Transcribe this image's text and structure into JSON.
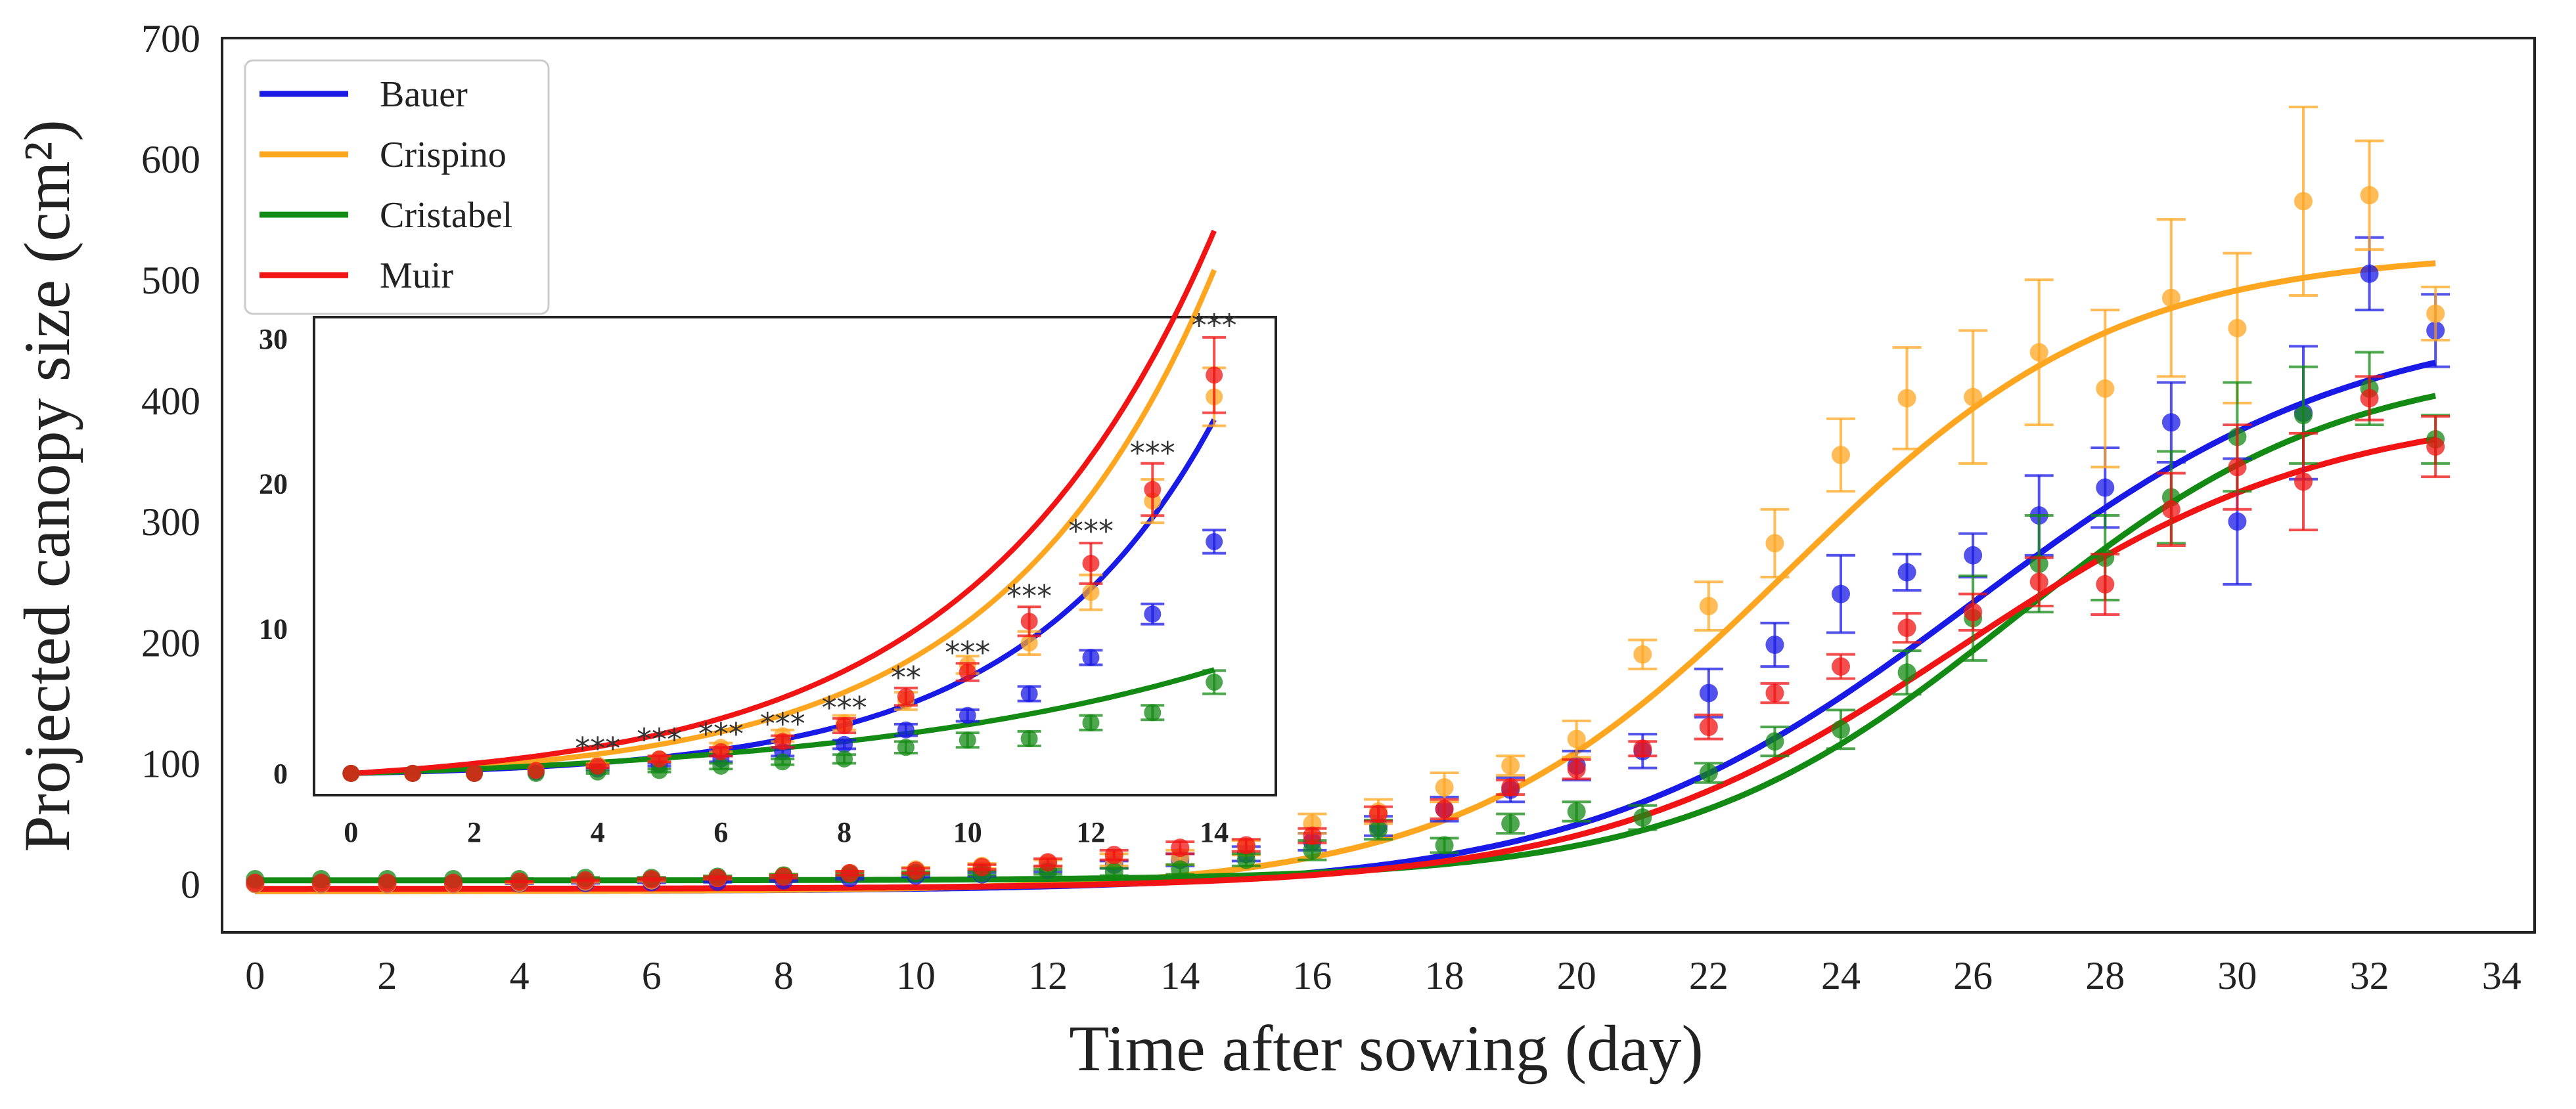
{
  "chart_data": {
    "type": "line",
    "title": "",
    "xlabel": "Time after sowing (day)",
    "ylabel": "Projected canopy size (cm²)",
    "xlim": [
      -0.5,
      34.5
    ],
    "ylim": [
      -40,
      700
    ],
    "xticks": [
      "0",
      "2",
      "4",
      "6",
      "8",
      "10",
      "12",
      "14",
      "16",
      "18",
      "20",
      "22",
      "24",
      "26",
      "28",
      "30",
      "32",
      "34"
    ],
    "yticks": [
      "0",
      "100",
      "200",
      "300",
      "400",
      "500",
      "600",
      "700"
    ],
    "legend": {
      "placement": "top-left",
      "entries": [
        "Bauer",
        "Crispino",
        "Cristabel",
        "Muir"
      ]
    },
    "colors": {
      "Bauer": "#1a1ae6",
      "Crispino": "#ffa620",
      "Cristabel": "#138a13",
      "Muir": "#f01414"
    },
    "fits": [
      {
        "name": "Bauer",
        "A": 478,
        "k": 0.34,
        "t0": 26.0,
        "base": -6
      },
      {
        "name": "Crispino",
        "A": 530,
        "k": 0.4,
        "t0": 23.2,
        "base": -6
      },
      {
        "name": "Cristabel",
        "A": 432,
        "k": 0.4,
        "t0": 26.6,
        "base": 3
      },
      {
        "name": "Muir",
        "A": 400,
        "k": 0.36,
        "t0": 25.8,
        "base": -4
      }
    ],
    "series": [
      {
        "name": "Bauer",
        "x": [
          0,
          1,
          2,
          3,
          4,
          5,
          6,
          7,
          8,
          9,
          10,
          11,
          12,
          13,
          14,
          15,
          16,
          17,
          18,
          19,
          20,
          21,
          22,
          23,
          24,
          25,
          26,
          27,
          28,
          29,
          30,
          31,
          32,
          33
        ],
        "y": [
          0,
          0,
          0,
          0,
          0.5,
          1,
          1.5,
          2,
          3,
          5,
          7,
          8,
          12,
          16,
          20,
          25,
          35,
          48,
          62,
          78,
          98,
          110,
          158,
          198,
          240,
          258,
          272,
          305,
          328,
          382,
          300,
          390,
          505,
          458
        ],
        "err": [
          0,
          0,
          0,
          0,
          0.3,
          0.4,
          0.5,
          0.6,
          0.8,
          1,
          1.2,
          1.5,
          2,
          3,
          5,
          6,
          7,
          8,
          10,
          10,
          12,
          14,
          20,
          18,
          32,
          15,
          18,
          33,
          33,
          33,
          52,
          55,
          30,
          30
        ]
      },
      {
        "name": "Crispino",
        "x": [
          0,
          1,
          2,
          3,
          4,
          5,
          6,
          7,
          8,
          9,
          10,
          11,
          12,
          13,
          14,
          15,
          16,
          17,
          18,
          19,
          20,
          21,
          22,
          23,
          24,
          25,
          26,
          27,
          28,
          29,
          30,
          31,
          32,
          33
        ],
        "y": [
          0,
          0,
          0,
          0,
          1,
          2,
          3,
          5,
          7,
          9,
          12,
          15,
          17,
          20,
          22,
          30,
          50,
          60,
          80,
          98,
          120,
          190,
          230,
          282,
          355,
          402,
          403,
          440,
          410,
          485,
          460,
          565,
          570,
          472
        ],
        "err": [
          0,
          0,
          0,
          0,
          0.3,
          0.5,
          0.8,
          1,
          1.2,
          1.5,
          1.8,
          2,
          3,
          5,
          6,
          6,
          8,
          10,
          12,
          8,
          15,
          12,
          20,
          28,
          30,
          42,
          55,
          60,
          65,
          65,
          62,
          78,
          45,
          22
        ]
      },
      {
        "name": "Cristabel",
        "x": [
          0,
          1,
          2,
          3,
          4,
          5,
          6,
          7,
          8,
          9,
          10,
          11,
          12,
          13,
          14,
          15,
          16,
          17,
          18,
          19,
          20,
          21,
          22,
          23,
          24,
          25,
          26,
          27,
          28,
          29,
          30,
          31,
          32,
          33
        ],
        "y": [
          4,
          4,
          4,
          4,
          4,
          5,
          5,
          6,
          7,
          8,
          9,
          9,
          10,
          10,
          12,
          20,
          28,
          45,
          32,
          50,
          60,
          55,
          92,
          118,
          128,
          175,
          220,
          265,
          270,
          320,
          370,
          388,
          410,
          368
        ],
        "err": [
          0,
          0,
          0,
          0,
          0.5,
          0.5,
          0.6,
          0.8,
          1,
          1,
          1.2,
          1.5,
          2,
          3,
          4,
          5,
          8,
          8,
          6,
          8,
          8,
          10,
          8,
          12,
          16,
          18,
          35,
          40,
          35,
          38,
          45,
          40,
          30,
          20
        ]
      },
      {
        "name": "Muir",
        "x": [
          0,
          1,
          2,
          3,
          4,
          5,
          6,
          7,
          8,
          9,
          10,
          11,
          12,
          13,
          14,
          15,
          16,
          17,
          18,
          19,
          20,
          21,
          22,
          23,
          24,
          25,
          26,
          27,
          28,
          29,
          30,
          31,
          32,
          33
        ],
        "y": [
          1,
          1,
          1,
          1,
          2,
          3,
          4,
          5,
          6,
          9,
          11,
          14,
          18,
          24,
          30,
          32,
          40,
          58,
          62,
          80,
          95,
          112,
          130,
          158,
          180,
          212,
          225,
          250,
          248,
          310,
          345,
          333,
          402,
          362
        ],
        "err": [
          0,
          0,
          0,
          0,
          0.3,
          0.5,
          0.8,
          1,
          1.2,
          1.5,
          2,
          2,
          3,
          4,
          5,
          5,
          6,
          6,
          8,
          6,
          8,
          6,
          10,
          8,
          10,
          12,
          15,
          20,
          25,
          30,
          35,
          40,
          18,
          25
        ]
      }
    ],
    "inset": {
      "xlim": [
        -0.6,
        15.0
      ],
      "ylim": [
        -1.5,
        31.5
      ],
      "xticks": [
        "0",
        "2",
        "4",
        "6",
        "8",
        "10",
        "12",
        "14"
      ],
      "yticks": [
        "0",
        "10",
        "20",
        "30"
      ],
      "fits": [
        {
          "name": "Bauer",
          "a": 0.28,
          "r": 0.32,
          "base": -0.28
        },
        {
          "name": "Crispino",
          "a": 0.61,
          "r": 0.29,
          "base": -0.61
        },
        {
          "name": "Cristabel",
          "a": 0.84,
          "r": 0.161,
          "base": -0.84
        },
        {
          "name": "Muir",
          "a": 1.01,
          "r": 0.26,
          "base": -1.01
        }
      ],
      "series": [
        {
          "name": "Bauer",
          "x": [
            0,
            1,
            2,
            3,
            4,
            5,
            6,
            7,
            8,
            9,
            10,
            11,
            12,
            13,
            14
          ],
          "y": [
            0,
            0,
            0,
            0.1,
            0.3,
            0.6,
            1.0,
            1.5,
            2.0,
            3.0,
            4.0,
            5.5,
            8.0,
            11.0,
            16.0
          ],
          "err": [
            0,
            0,
            0,
            0,
            0.1,
            0.1,
            0.2,
            0.3,
            0.3,
            0.4,
            0.4,
            0.5,
            0.5,
            0.7,
            0.8
          ]
        },
        {
          "name": "Crispino",
          "x": [
            0,
            1,
            2,
            3,
            4,
            5,
            6,
            7,
            8,
            9,
            10,
            11,
            12,
            13,
            14
          ],
          "y": [
            0,
            0,
            0,
            0.2,
            0.6,
            1.0,
            1.8,
            2.6,
            3.5,
            5.0,
            7.5,
            9.0,
            12.5,
            18.8,
            26.0
          ],
          "err": [
            0,
            0,
            0,
            0,
            0.1,
            0.2,
            0.3,
            0.4,
            0.5,
            0.6,
            0.6,
            0.8,
            1.2,
            1.5,
            2.0
          ]
        },
        {
          "name": "Cristabel",
          "x": [
            0,
            1,
            2,
            3,
            4,
            5,
            6,
            7,
            8,
            9,
            10,
            11,
            12,
            13,
            14
          ],
          "y": [
            0,
            0,
            0,
            0,
            0.1,
            0.2,
            0.5,
            0.8,
            1.0,
            1.8,
            2.3,
            2.4,
            3.5,
            4.2,
            6.3
          ],
          "err": [
            0,
            0,
            0,
            0,
            0.1,
            0.1,
            0.2,
            0.2,
            0.3,
            0.4,
            0.5,
            0.5,
            0.5,
            0.5,
            0.8
          ]
        },
        {
          "name": "Muir",
          "x": [
            0,
            1,
            2,
            3,
            4,
            5,
            6,
            7,
            8,
            9,
            10,
            11,
            12,
            13,
            14
          ],
          "y": [
            0,
            0,
            0,
            0.2,
            0.5,
            1.0,
            1.5,
            2.2,
            3.3,
            5.3,
            7.0,
            10.5,
            14.5,
            19.6,
            27.5
          ],
          "err": [
            0,
            0,
            0,
            0,
            0.1,
            0.2,
            0.3,
            0.4,
            0.5,
            0.6,
            0.6,
            1.0,
            1.4,
            1.8,
            2.6
          ]
        }
      ],
      "significance": [
        {
          "x": 4,
          "label": "***",
          "y": 1.0
        },
        {
          "x": 5,
          "label": "***",
          "y": 1.6
        },
        {
          "x": 6,
          "label": "***",
          "y": 2.0
        },
        {
          "x": 7,
          "label": "***",
          "y": 2.7
        },
        {
          "x": 8,
          "label": "***",
          "y": 3.8
        },
        {
          "x": 9,
          "label": "**",
          "y": 5.9
        },
        {
          "x": 10,
          "label": "***",
          "y": 7.6
        },
        {
          "x": 11,
          "label": "***",
          "y": 11.5
        },
        {
          "x": 12,
          "label": "***",
          "y": 16.0
        },
        {
          "x": 13,
          "label": "***",
          "y": 21.4
        },
        {
          "x": 14,
          "label": "***",
          "y": 30.2
        }
      ]
    }
  }
}
